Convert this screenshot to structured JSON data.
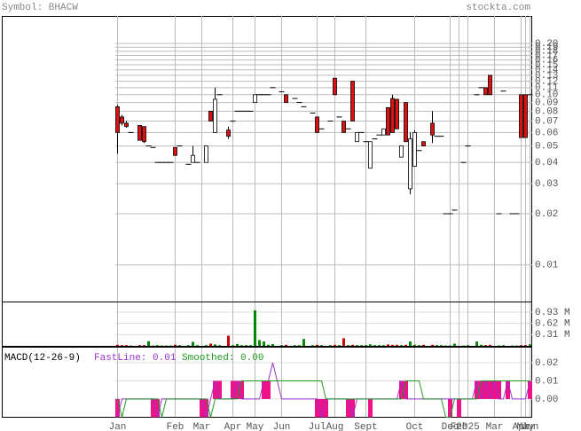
{
  "chart_data": [
    {
      "type": "candlestick",
      "title": "Symbol: BHACW",
      "source": "stockta.com",
      "categories": [
        "Jan",
        null,
        null,
        null,
        null,
        null,
        null,
        null,
        null,
        null,
        null,
        null,
        null,
        "Feb",
        null,
        null,
        null,
        null,
        null,
        "Mar",
        null,
        null,
        null,
        null,
        null,
        null,
        "Apr",
        null,
        null,
        null,
        null,
        "May",
        null,
        null,
        null,
        null,
        null,
        "Jun",
        null,
        null,
        null,
        null,
        null,
        null,
        null,
        "Jul",
        null,
        null,
        null,
        "Aug",
        null,
        null,
        null,
        null,
        null,
        null,
        "Sept",
        null,
        null,
        null,
        null,
        null,
        null,
        null,
        null,
        null,
        null,
        "Oct",
        null,
        null,
        null,
        null,
        null,
        null,
        null,
        "Dec",
        null,
        "Feb",
        null,
        "2025",
        null,
        null,
        null,
        null,
        null,
        "Mar",
        null,
        null,
        null,
        null,
        null,
        "Apr",
        "May",
        "Jun"
      ],
      "open": [
        0.085,
        0.074,
        0.068,
        0.06,
        null,
        0.066,
        0.065,
        0.05,
        0.049,
        0.04,
        0.04,
        0.04,
        0.04,
        0.049,
        0.05,
        null,
        0.039,
        0.04,
        0.04,
        null,
        0.04,
        0.08,
        0.06,
        0.1,
        null,
        0.062,
        0.07,
        0.08,
        0.08,
        0.08,
        0.08,
        0.09,
        0.1,
        0.1,
        0.1,
        0.11,
        null,
        0.104,
        0.1,
        null,
        0.095,
        0.09,
        0.085,
        null,
        0.078,
        0.074,
        0.063,
        null,
        0.07,
        0.125,
        0.074,
        0.07,
        0.063,
        0.12,
        0.053,
        0.06,
        0.053,
        0.037,
        0.055,
        0.058,
        0.058,
        0.084,
        0.095,
        0.094,
        0.043,
        0.09,
        0.028,
        0.038,
        0.047,
        0.053,
        null,
        0.068,
        0.057,
        0.057,
        0.02,
        0.02,
        0.021,
        null,
        0.04,
        0.05,
        null,
        0.1,
        0.11,
        0.11,
        0.13,
        null,
        0.02,
        0.105,
        null,
        0.02,
        0.02,
        0.1,
        0.1,
        0.1
      ],
      "high": [
        0.087,
        0.076,
        0.07,
        0.06,
        null,
        0.066,
        0.065,
        0.05,
        0.049,
        0.04,
        0.04,
        0.04,
        0.04,
        0.049,
        0.05,
        null,
        0.039,
        0.05,
        0.04,
        null,
        0.05,
        0.08,
        0.11,
        0.1,
        null,
        0.065,
        0.07,
        0.08,
        0.08,
        0.08,
        0.08,
        0.1,
        0.1,
        0.1,
        0.1,
        0.11,
        null,
        0.104,
        0.1,
        null,
        0.095,
        0.09,
        0.085,
        null,
        0.078,
        0.074,
        0.063,
        null,
        0.07,
        0.125,
        0.074,
        0.07,
        0.063,
        0.12,
        0.06,
        0.06,
        0.053,
        0.053,
        0.055,
        0.058,
        0.063,
        0.084,
        0.1,
        0.094,
        0.05,
        0.09,
        0.06,
        0.062,
        0.047,
        0.053,
        null,
        0.08,
        0.057,
        0.057,
        0.02,
        0.02,
        0.021,
        null,
        0.04,
        0.05,
        null,
        0.1,
        0.11,
        0.11,
        0.13,
        null,
        0.02,
        0.105,
        null,
        0.02,
        0.02,
        0.1,
        0.1,
        0.1
      ],
      "low": [
        0.045,
        0.066,
        0.064,
        0.06,
        null,
        0.054,
        0.052,
        0.05,
        0.049,
        0.04,
        0.04,
        0.04,
        0.04,
        0.044,
        0.05,
        null,
        0.039,
        0.04,
        0.04,
        null,
        0.04,
        0.07,
        0.06,
        0.1,
        null,
        0.055,
        0.07,
        0.08,
        0.08,
        0.08,
        0.08,
        0.09,
        0.1,
        0.1,
        0.1,
        0.11,
        null,
        0.104,
        0.09,
        null,
        0.095,
        0.09,
        0.085,
        null,
        0.078,
        0.06,
        0.063,
        null,
        0.07,
        0.1,
        0.074,
        0.06,
        0.063,
        0.07,
        0.053,
        0.06,
        0.053,
        0.037,
        0.055,
        0.058,
        0.058,
        0.058,
        0.06,
        0.063,
        0.043,
        0.053,
        0.026,
        0.038,
        0.047,
        0.05,
        null,
        0.052,
        0.057,
        0.057,
        0.02,
        0.02,
        0.021,
        null,
        0.04,
        0.05,
        null,
        0.1,
        0.11,
        0.1,
        0.1,
        null,
        0.02,
        0.105,
        null,
        0.02,
        0.02,
        0.056,
        0.056,
        0.1
      ],
      "close": [
        0.06,
        0.068,
        0.065,
        0.06,
        null,
        0.054,
        0.053,
        0.05,
        0.049,
        0.04,
        0.04,
        0.04,
        0.04,
        0.044,
        0.05,
        null,
        0.039,
        0.044,
        0.04,
        null,
        0.05,
        0.07,
        0.094,
        0.1,
        null,
        0.057,
        0.07,
        0.08,
        0.08,
        0.08,
        0.08,
        0.1,
        0.1,
        0.1,
        0.1,
        0.11,
        null,
        0.104,
        0.09,
        null,
        0.095,
        0.09,
        0.085,
        null,
        0.078,
        0.06,
        0.063,
        null,
        0.07,
        0.1,
        0.074,
        0.06,
        0.063,
        0.07,
        0.06,
        0.06,
        0.053,
        0.053,
        0.055,
        0.058,
        0.063,
        0.058,
        0.06,
        0.063,
        0.05,
        0.053,
        0.055,
        0.06,
        0.047,
        0.05,
        null,
        0.058,
        0.057,
        0.057,
        0.02,
        0.02,
        0.021,
        null,
        0.04,
        0.05,
        null,
        0.1,
        0.11,
        0.1,
        0.1,
        null,
        0.02,
        0.105,
        null,
        0.02,
        0.02,
        0.056,
        0.056,
        0.1
      ],
      "up_color": "#ffffff",
      "down_color": "#dd1111",
      "log_scale": true,
      "grid": true,
      "ylim": [
        0.0061,
        0.29
      ],
      "yticks": [
        0.01,
        0.02,
        0.03,
        0.04,
        0.05,
        0.06,
        0.07,
        0.08,
        0.09,
        {
          "value": 0.1,
          "label": "0.10"
        },
        0.11,
        0.12,
        0.13,
        0.14,
        0.15,
        0.16,
        0.17,
        0.18,
        0.19,
        {
          "value": 0.2,
          "label": "0.20"
        }
      ]
    },
    {
      "type": "bar",
      "values": [
        0.03,
        0.02,
        0.02,
        0.01,
        null,
        0.02,
        0.02,
        0.13,
        0.01,
        0.02,
        0.01,
        0.01,
        0.01,
        0.03,
        0.02,
        null,
        0.02,
        0.11,
        0.02,
        null,
        0.02,
        0.06,
        0.04,
        0.02,
        null,
        0.28,
        0.02,
        0.05,
        0.02,
        0.02,
        0.02,
        0.98,
        0.16,
        0.12,
        0.03,
        0.05,
        null,
        0.02,
        0.03,
        null,
        0.02,
        0.02,
        0.19,
        null,
        0.02,
        0.03,
        0.02,
        null,
        0.02,
        0.03,
        0.02,
        0.21,
        0.02,
        0.03,
        0.02,
        0.02,
        0.02,
        0.04,
        0.02,
        0.02,
        0.02,
        0.04,
        0.03,
        0.03,
        0.02,
        0.03,
        0.12,
        0.03,
        0.02,
        0.03,
        null,
        0.03,
        0.02,
        0.02,
        0.01,
        0.01,
        0.06,
        null,
        0.01,
        0.02,
        null,
        0.12,
        0.03,
        0.02,
        0.03,
        null,
        0.01,
        0.02,
        null,
        0.01,
        0.01,
        0.02,
        0.02,
        0.04
      ],
      "up_color": "#008800",
      "down_color": "#cc0000",
      "ylim": [
        0,
        1.2
      ],
      "yticks": [
        {
          "value": 0.31,
          "label": "0.31 M"
        },
        {
          "value": 0.62,
          "label": "0.62 M"
        },
        {
          "value": 0.93,
          "label": "0.93 M"
        }
      ]
    },
    {
      "type": "macd",
      "title": "MACD(12-26-9)",
      "histogram": {
        "color": "#ee1188",
        "values": [
          -0.01,
          null,
          null,
          null,
          null,
          null,
          null,
          null,
          -0.01,
          -0.01,
          null,
          null,
          null,
          null,
          null,
          null,
          null,
          null,
          null,
          -0.01,
          -0.01,
          null,
          0.01,
          0.01,
          null,
          null,
          0.01,
          0.01,
          0.01,
          null,
          null,
          null,
          null,
          0.01,
          0.01,
          null,
          null,
          null,
          null,
          null,
          null,
          null,
          null,
          null,
          null,
          -0.01,
          -0.01,
          -0.01,
          null,
          null,
          null,
          null,
          -0.01,
          -0.01,
          null,
          null,
          null,
          -0.01,
          null,
          null,
          null,
          null,
          null,
          null,
          0.01,
          0.01,
          null,
          null,
          null,
          null,
          null,
          null,
          null,
          null,
          null,
          -0.01,
          null,
          -0.01,
          null,
          null,
          null,
          0.01,
          0.01,
          0.01,
          0.01,
          0.01,
          0.01,
          null,
          0.01,
          null,
          null,
          null,
          null,
          0.01
        ]
      },
      "series": [
        {
          "name": "FastLine: 0.01",
          "color": "#9933cc",
          "values": [
            -0.01,
            0,
            0,
            0,
            0,
            0,
            0,
            0,
            0,
            -0.01,
            0,
            0,
            0,
            0,
            0,
            0,
            0,
            0,
            0,
            0,
            -0.01,
            0,
            0.01,
            0,
            0,
            0,
            0,
            0.01,
            0,
            0,
            0,
            0,
            0,
            0.01,
            0.01,
            0.02,
            0.01,
            0,
            0,
            0,
            0,
            0,
            0,
            0,
            0,
            0,
            -0.01,
            0,
            0,
            0,
            0,
            0,
            0,
            -0.01,
            0,
            0,
            0,
            0,
            0,
            0,
            0,
            0,
            0,
            0,
            0.01,
            0,
            0,
            0,
            0,
            0,
            0,
            0,
            0,
            0,
            0,
            0,
            0,
            0,
            0,
            0,
            0,
            0.01,
            0,
            0.01,
            0,
            0.01,
            0,
            0,
            0.01,
            0,
            0,
            0,
            0,
            0.01
          ]
        },
        {
          "name": "Smoothed: 0.00",
          "color": "#229922",
          "values": [
            0,
            -0.01,
            0,
            0,
            0,
            0,
            0,
            0,
            0,
            0,
            -0.01,
            0,
            0,
            0,
            0,
            0,
            0,
            0,
            0,
            0,
            0,
            -0.01,
            0,
            0,
            0,
            0,
            0,
            0,
            0.01,
            0.01,
            0.01,
            0.01,
            0.01,
            0.01,
            0.01,
            0.01,
            0.01,
            0.01,
            0.01,
            0.01,
            0.01,
            0.01,
            0.01,
            0.01,
            0.01,
            0.01,
            0.01,
            0,
            0,
            0,
            0,
            0,
            0,
            0,
            0,
            0,
            0,
            0,
            0,
            0,
            0,
            0,
            0,
            0,
            0,
            0.01,
            0.01,
            0.01,
            0.01,
            0,
            0,
            0,
            0,
            0,
            -0.01,
            -0.01,
            0,
            0,
            0,
            0,
            0,
            0,
            0.01,
            0.01,
            0.01,
            0.01,
            0.01,
            0.01,
            0.01,
            0.01,
            0.01,
            0.01,
            0.01,
            0.01
          ]
        }
      ],
      "ylim": [
        -0.0098,
        0.0283
      ],
      "yticks": [
        {
          "value": 0,
          "label": "0.00"
        },
        0.01,
        0.02
      ]
    }
  ]
}
